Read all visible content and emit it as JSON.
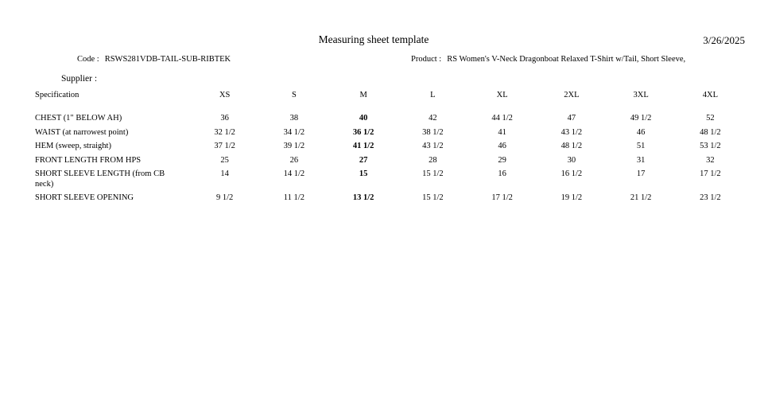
{
  "header": {
    "title": "Measuring sheet template",
    "date": "3/26/2025",
    "code_label": "Code :",
    "code_value": "RSWS281VDB-TAIL-SUB-RIBTEK",
    "product_label": "Product :",
    "product_value": "RS Women's V-Neck Dragonboat Relaxed T-Shirt w/Tail, Short Sleeve,",
    "supplier_label": "Supplier :"
  },
  "table": {
    "spec_header": "Specification",
    "sizes": [
      "XS",
      "S",
      "M",
      "L",
      "XL",
      "2XL",
      "3XL",
      "4XL"
    ],
    "bold_size": "M",
    "rows": [
      {
        "spec": "CHEST (1\" BELOW AH)",
        "values": [
          "36",
          "38",
          "40",
          "42",
          "44 1/2",
          "47",
          "49 1/2",
          "52"
        ]
      },
      {
        "spec": "WAIST (at narrowest point)",
        "values": [
          "32 1/2",
          "34 1/2",
          "36 1/2",
          "38 1/2",
          "41",
          "43 1/2",
          "46",
          "48 1/2"
        ]
      },
      {
        "spec": "HEM (sweep, straight)",
        "values": [
          "37 1/2",
          "39 1/2",
          "41 1/2",
          "43 1/2",
          "46",
          "48 1/2",
          "51",
          "53 1/2"
        ]
      },
      {
        "spec": "FRONT LENGTH FROM HPS",
        "values": [
          "25",
          "26",
          "27",
          "28",
          "29",
          "30",
          "31",
          "32"
        ]
      },
      {
        "spec": "SHORT SLEEVE LENGTH (from CB neck)",
        "values": [
          "14",
          "14 1/2",
          "15",
          "15 1/2",
          "16",
          "16 1/2",
          "17",
          "17 1/2"
        ]
      },
      {
        "spec": "SHORT SLEEVE OPENING",
        "values": [
          "9 1/2",
          "11 1/2",
          "13 1/2",
          "15 1/2",
          "17 1/2",
          "19 1/2",
          "21 1/2",
          "23 1/2"
        ]
      }
    ]
  }
}
